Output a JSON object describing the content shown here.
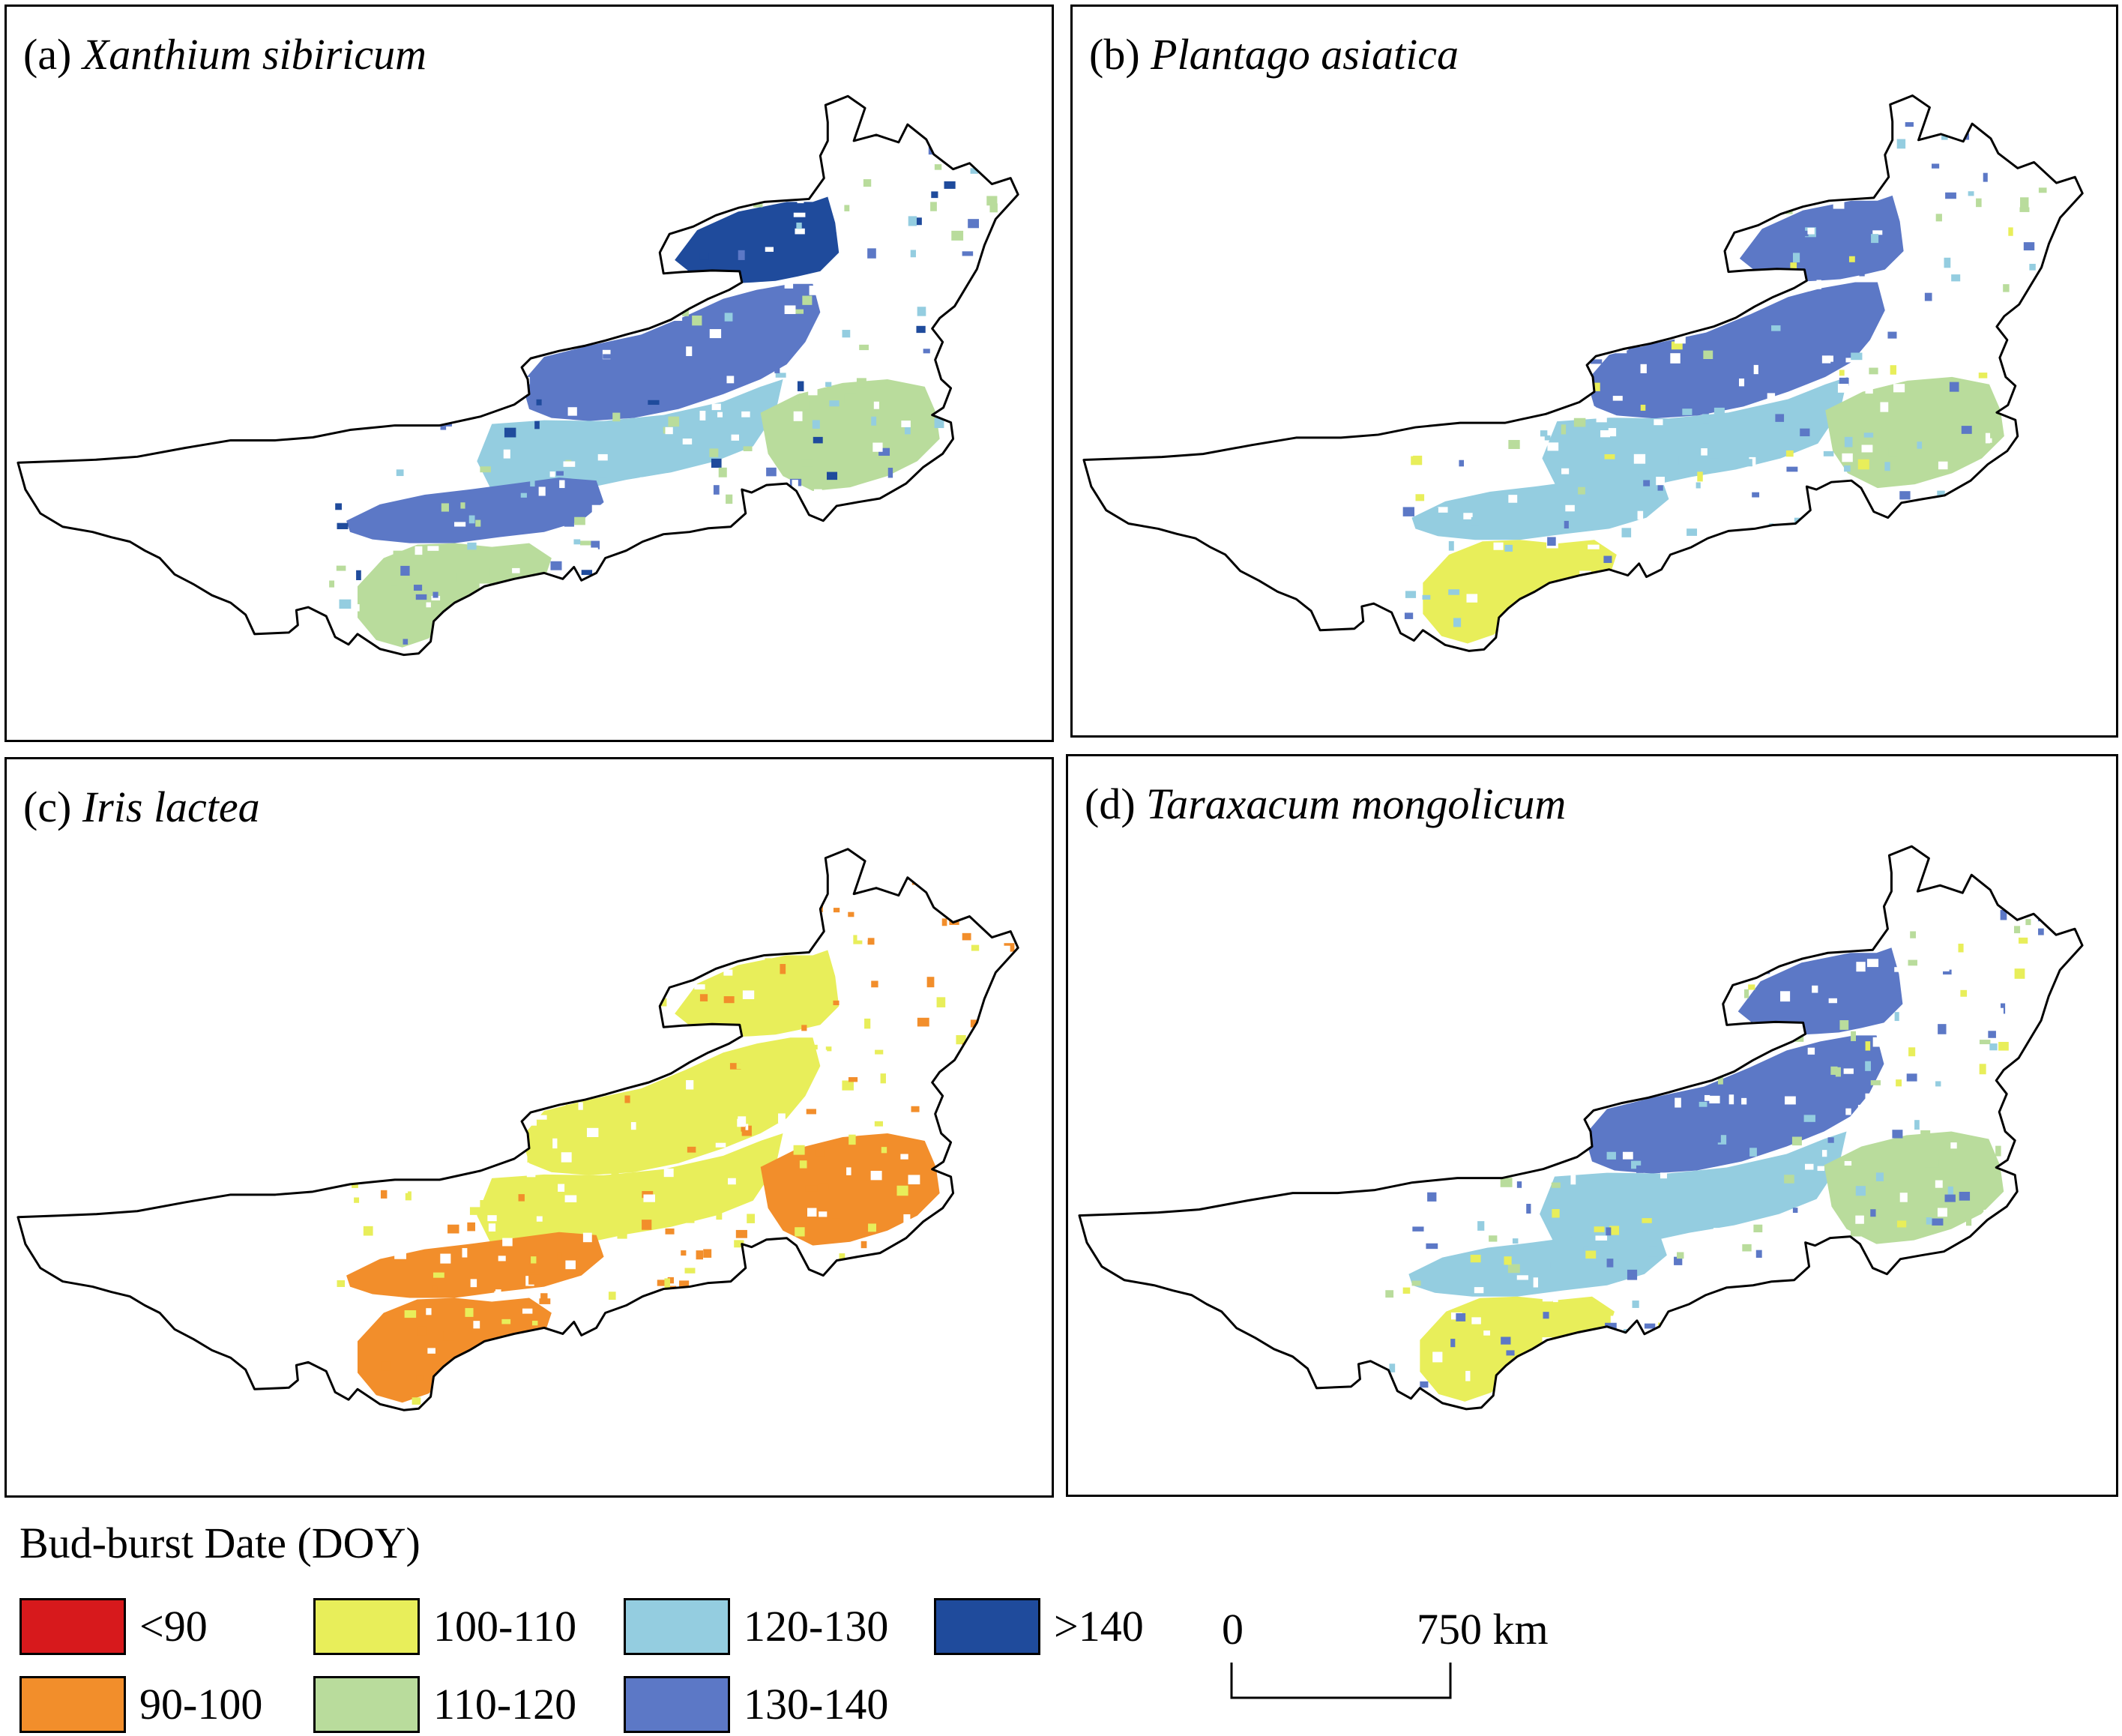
{
  "panels": [
    {
      "id": "a",
      "letter": "(a)",
      "species": "Xanthium sibiricum"
    },
    {
      "id": "b",
      "letter": "(b)",
      "species": "Plantago asiatica"
    },
    {
      "id": "c",
      "letter": "(c)",
      "species": "Iris lactea"
    },
    {
      "id": "d",
      "letter": "(d)",
      "species": "Taraxacum mongolicum"
    }
  ],
  "legend": {
    "title": "Bud-burst Date (DOY)",
    "classes": [
      {
        "label": "<90",
        "color": "#d7191c"
      },
      {
        "label": "90-100",
        "color": "#f28e2b"
      },
      {
        "label": "100-110",
        "color": "#e8ee5a"
      },
      {
        "label": "110-120",
        "color": "#b9dc9c"
      },
      {
        "label": "120-130",
        "color": "#94cde0"
      },
      {
        "label": "130-140",
        "color": "#5c78c6"
      },
      {
        "label": ">140",
        "color": "#1f4b9c"
      }
    ]
  },
  "scale_bar": {
    "min_label": "0",
    "max_label": "750 km"
  },
  "region_colors": {
    "a": {
      "northeast": "#1f4b9c",
      "north_strip": "#5c78c6",
      "central": "#94cde0",
      "east": "#b9dc9c",
      "southwest": "#b9dc9c",
      "west_band": "#5c78c6"
    },
    "b": {
      "northeast": "#5c78c6",
      "north_strip": "#5c78c6",
      "central": "#94cde0",
      "east": "#b9dc9c",
      "southwest": "#e8ee5a",
      "west_band": "#94cde0"
    },
    "c": {
      "northeast": "#e8ee5a",
      "north_strip": "#e8ee5a",
      "central": "#e8ee5a",
      "east": "#f28e2b",
      "southwest": "#f28e2b",
      "west_band": "#f28e2b"
    },
    "d": {
      "northeast": "#5c78c6",
      "north_strip": "#5c78c6",
      "central": "#94cde0",
      "east": "#b9dc9c",
      "southwest": "#e8ee5a",
      "west_band": "#94cde0"
    }
  }
}
